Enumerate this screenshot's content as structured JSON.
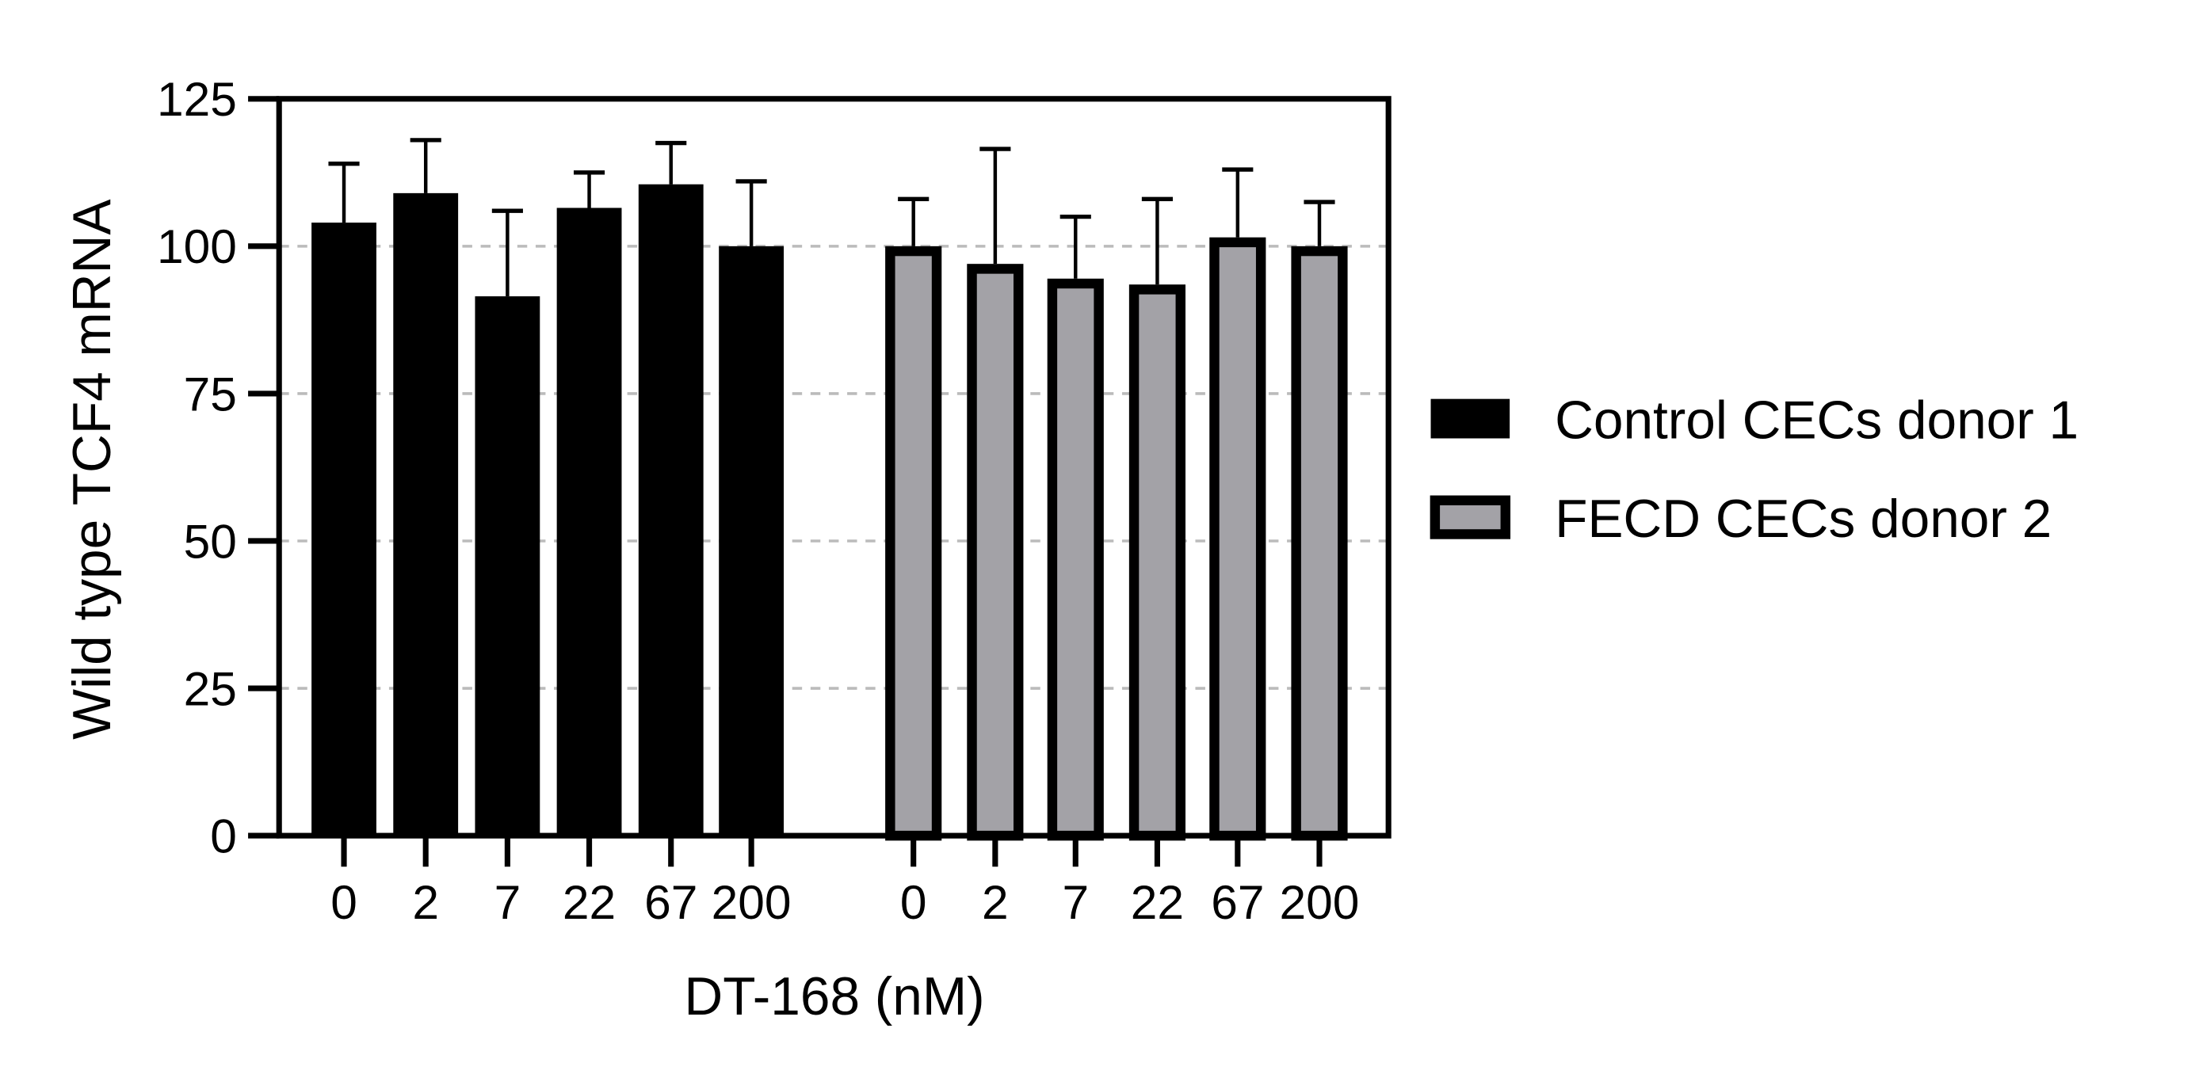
{
  "chart_data": {
    "type": "bar",
    "title": "",
    "xlabel": "DT-168 (nM)",
    "ylabel": "Wild type TCF4 mRNA",
    "ylim": [
      0,
      125
    ],
    "yticks": [
      "0",
      "25",
      "50",
      "75",
      "100",
      "125"
    ],
    "ytick_values": [
      0,
      25,
      50,
      75,
      100,
      125
    ],
    "grid": "horizontal dashed at 25, 50, 75, 100",
    "legend_position": "right",
    "categories": [
      "0",
      "2",
      "7",
      "22",
      "67",
      "200"
    ],
    "series": [
      {
        "name": "Control CECs donor 1",
        "fill": "#000000",
        "stroke": "#000000",
        "values": [
          104,
          109,
          91.5,
          106.5,
          110.5,
          100
        ],
        "error_upper": [
          10,
          9,
          14.5,
          6,
          7,
          11
        ]
      },
      {
        "name": "FECD CECs donor 2",
        "fill": "#a3a2a7",
        "stroke": "#000000",
        "values": [
          100,
          97,
          94.5,
          93.5,
          101.5,
          100
        ],
        "error_upper": [
          8,
          19.5,
          10.5,
          14.5,
          11.5,
          7.5
        ]
      }
    ]
  }
}
